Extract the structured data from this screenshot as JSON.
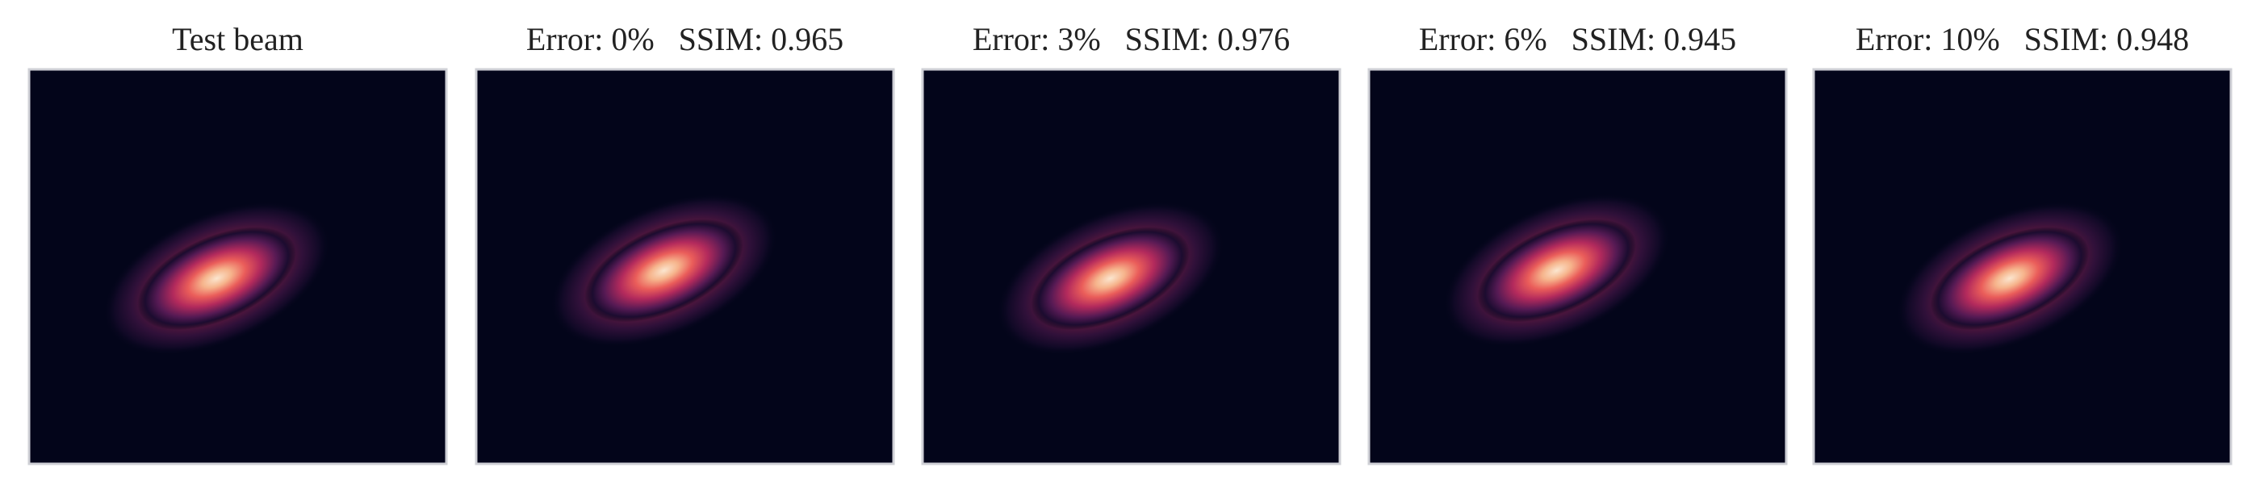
{
  "panels": [
    {
      "title": "Test beam"
    },
    {
      "title": "Error: 0%   SSIM: 0.965"
    },
    {
      "title": "Error: 3%   SSIM: 0.976"
    },
    {
      "title": "Error: 6%   SSIM: 0.945"
    },
    {
      "title": "Error: 10%   SSIM: 0.948"
    }
  ]
}
